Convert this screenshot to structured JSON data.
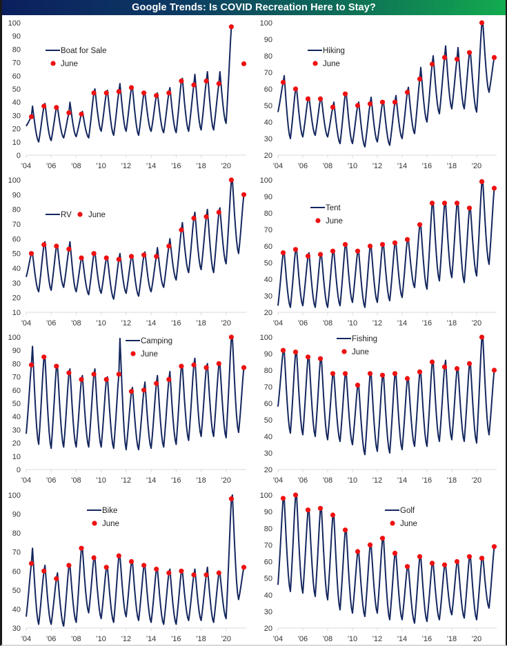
{
  "title": "Google Trends: Is COVID Recreation Here to Stay?",
  "colors": {
    "line": "#13265e",
    "june_marker": "#ee1111",
    "axis": "#d9d9d9",
    "title_start": "#0b1f5e",
    "title_end": "#12ab4f"
  },
  "chart_data": [
    {
      "type": "line",
      "series_name": "Boat for Sale",
      "marker_name": "June",
      "legend_layout": "stacked",
      "xlabels": [
        "'04",
        "'06",
        "'08",
        "'10",
        "'12",
        "'14",
        "'16",
        "'18",
        "'20"
      ],
      "xrange": [
        2004,
        2021.5
      ],
      "ylim": [
        0,
        100
      ],
      "yticks": [
        0,
        10,
        20,
        30,
        40,
        50,
        60,
        70,
        80,
        90,
        100
      ],
      "june_years": [
        2004,
        2005,
        2006,
        2007,
        2008,
        2009,
        2010,
        2011,
        2012,
        2013,
        2014,
        2015,
        2016,
        2017,
        2018,
        2019,
        2020,
        2021
      ],
      "june_values": [
        29,
        37,
        36,
        32,
        31,
        47,
        47,
        48,
        51,
        47,
        45,
        47,
        56,
        53,
        56,
        54,
        97,
        69
      ],
      "annual_peaks": [
        37,
        39,
        36,
        40,
        33,
        50,
        49,
        54,
        51,
        47,
        47,
        51,
        58,
        61,
        63,
        63,
        100
      ],
      "winter_troughs": [
        10,
        11,
        13,
        14,
        13,
        18,
        15,
        18,
        15,
        18,
        17,
        17,
        18,
        19,
        19,
        24
      ],
      "start_value": 22
    },
    {
      "type": "line",
      "series_name": "Hiking",
      "marker_name": "June",
      "legend_layout": "stacked",
      "xlabels": [
        "'04",
        "'06",
        "'08",
        "'10",
        "'12",
        "'14",
        "'16",
        "'18",
        "'20"
      ],
      "xrange": [
        2004,
        2021.5
      ],
      "ylim": [
        20,
        100
      ],
      "yticks": [
        20,
        30,
        40,
        50,
        60,
        70,
        80,
        90,
        100
      ],
      "june_years": [
        2004,
        2005,
        2006,
        2007,
        2008,
        2009,
        2010,
        2011,
        2012,
        2013,
        2014,
        2015,
        2016,
        2017,
        2018,
        2019,
        2020,
        2021
      ],
      "june_values": [
        64,
        60,
        54,
        54,
        49,
        57,
        50,
        51,
        52,
        52,
        58,
        66,
        75,
        79,
        78,
        82,
        100,
        79
      ],
      "annual_peaks": [
        68,
        60,
        55,
        54,
        52,
        57,
        52,
        55,
        52,
        56,
        61,
        73,
        80,
        86,
        85,
        82,
        100
      ],
      "winter_troughs": [
        30,
        31,
        32,
        31,
        27,
        27,
        25,
        28,
        26,
        30,
        33,
        40,
        45,
        48,
        48,
        46,
        58
      ],
      "start_value": 46
    },
    {
      "type": "line",
      "series_name": "RV",
      "marker_name": "June",
      "legend_layout": "inline",
      "xlabels": [
        "'04",
        "'06",
        "'08",
        "'10",
        "'12",
        "'14",
        "'16",
        "'18",
        "'20"
      ],
      "xrange": [
        2004,
        2021.5
      ],
      "ylim": [
        10,
        100
      ],
      "yticks": [
        10,
        20,
        30,
        40,
        50,
        60,
        70,
        80,
        90,
        100
      ],
      "june_years": [
        2004,
        2005,
        2006,
        2007,
        2008,
        2009,
        2010,
        2011,
        2012,
        2013,
        2014,
        2015,
        2016,
        2017,
        2018,
        2019,
        2020,
        2021
      ],
      "june_values": [
        50,
        56,
        55,
        53,
        47,
        50,
        47,
        46,
        48,
        49,
        48,
        55,
        66,
        74,
        75,
        78,
        100,
        90
      ],
      "annual_peaks": [
        50,
        58,
        55,
        58,
        47,
        51,
        47,
        50,
        48,
        51,
        54,
        60,
        71,
        78,
        80,
        81,
        100
      ],
      "winter_troughs": [
        24,
        25,
        27,
        24,
        22,
        23,
        19,
        23,
        21,
        24,
        27,
        32,
        37,
        39,
        37,
        43,
        50
      ],
      "start_value": 34
    },
    {
      "type": "line",
      "series_name": "Tent",
      "marker_name": "June",
      "legend_layout": "stacked",
      "xlabels": [
        "'04",
        "'06",
        "'08",
        "'10",
        "'12",
        "'14",
        "'16",
        "'18",
        "'20"
      ],
      "xrange": [
        2004,
        2021.5
      ],
      "ylim": [
        20,
        100
      ],
      "yticks": [
        20,
        30,
        40,
        50,
        60,
        70,
        80,
        90,
        100
      ],
      "june_years": [
        2004,
        2005,
        2006,
        2007,
        2008,
        2009,
        2010,
        2011,
        2012,
        2013,
        2014,
        2015,
        2016,
        2017,
        2018,
        2019,
        2020,
        2021
      ],
      "june_values": [
        56,
        58,
        54,
        55,
        57,
        61,
        57,
        60,
        61,
        62,
        64,
        73,
        86,
        86,
        86,
        83,
        99,
        95
      ],
      "annual_peaks": [
        56,
        58,
        56,
        55,
        57,
        61,
        57,
        60,
        61,
        62,
        64,
        73,
        86,
        86,
        86,
        83,
        99
      ],
      "winter_troughs": [
        23,
        24,
        23,
        23,
        24,
        26,
        23,
        26,
        27,
        29,
        35,
        34,
        39,
        41,
        38,
        42,
        49
      ],
      "start_value": 24
    },
    {
      "type": "line",
      "series_name": "Camping",
      "marker_name": "June",
      "legend_layout": "stacked",
      "xlabels": [
        "'04",
        "'06",
        "'08",
        "'10",
        "'12",
        "'14",
        "'16",
        "'18",
        "'20"
      ],
      "xrange": [
        2004,
        2021.5
      ],
      "ylim": [
        0,
        100
      ],
      "yticks": [
        0,
        10,
        20,
        30,
        40,
        50,
        60,
        70,
        80,
        90,
        100
      ],
      "june_years": [
        2004,
        2005,
        2006,
        2007,
        2008,
        2009,
        2010,
        2011,
        2012,
        2013,
        2014,
        2015,
        2016,
        2017,
        2018,
        2019,
        2020,
        2021
      ],
      "june_values": [
        79,
        85,
        78,
        73,
        68,
        72,
        68,
        72,
        59,
        60,
        65,
        68,
        78,
        79,
        77,
        80,
        100,
        77
      ],
      "annual_peaks": [
        93,
        85,
        78,
        76,
        71,
        76,
        70,
        99,
        62,
        66,
        71,
        74,
        78,
        84,
        80,
        80,
        100
      ],
      "winter_troughs": [
        19,
        16,
        17,
        17,
        17,
        17,
        16,
        15,
        15,
        16,
        17,
        19,
        22,
        25,
        25,
        24,
        28
      ],
      "start_value": 27
    },
    {
      "type": "line",
      "series_name": "Fishing",
      "marker_name": "June",
      "legend_layout": "stacked",
      "xlabels": [
        "'04",
        "'06",
        "'08",
        "'10",
        "'12",
        "'14",
        "'16",
        "'18",
        "'20"
      ],
      "xrange": [
        2004,
        2021.5
      ],
      "ylim": [
        20,
        100
      ],
      "yticks": [
        20,
        30,
        40,
        50,
        60,
        70,
        80,
        90,
        100
      ],
      "june_years": [
        2004,
        2005,
        2006,
        2007,
        2008,
        2009,
        2010,
        2011,
        2012,
        2013,
        2014,
        2015,
        2016,
        2017,
        2018,
        2019,
        2020,
        2021
      ],
      "june_values": [
        92,
        91,
        88,
        87,
        78,
        78,
        71,
        78,
        77,
        78,
        75,
        79,
        85,
        82,
        81,
        84,
        100,
        80
      ],
      "annual_peaks": [
        92,
        91,
        88,
        87,
        78,
        78,
        71,
        78,
        77,
        78,
        75,
        79,
        85,
        86,
        81,
        84,
        100
      ],
      "winter_troughs": [
        42,
        41,
        40,
        38,
        37,
        35,
        29,
        31,
        30,
        32,
        34,
        34,
        37,
        38,
        37,
        36,
        41
      ],
      "start_value": 58
    },
    {
      "type": "line",
      "series_name": "Bike",
      "marker_name": "June",
      "legend_layout": "stacked",
      "xlabels": [
        "'04",
        "'06",
        "'08",
        "'10",
        "'12",
        "'14",
        "'16",
        "'18",
        "'20"
      ],
      "xrange": [
        2004,
        2021.5
      ],
      "ylim": [
        30,
        100
      ],
      "yticks": [
        30,
        40,
        50,
        60,
        70,
        80,
        90,
        100
      ],
      "june_years": [
        2004,
        2005,
        2006,
        2007,
        2008,
        2009,
        2010,
        2011,
        2012,
        2013,
        2014,
        2015,
        2016,
        2017,
        2018,
        2019,
        2020,
        2021
      ],
      "june_values": [
        64,
        60,
        56,
        63,
        72,
        67,
        62,
        68,
        65,
        63,
        61,
        59,
        60,
        58,
        58,
        59,
        98,
        62
      ],
      "annual_peaks": [
        72,
        63,
        59,
        63,
        72,
        67,
        62,
        68,
        65,
        63,
        61,
        61,
        60,
        61,
        62,
        59,
        100
      ],
      "winter_troughs": [
        32,
        32,
        31,
        33,
        38,
        35,
        33,
        36,
        34,
        33,
        32,
        32,
        34,
        34,
        33,
        35,
        45
      ],
      "start_value": 36
    },
    {
      "type": "line",
      "series_name": "Golf",
      "marker_name": "June",
      "legend_layout": "stacked",
      "xlabels": [
        "'04",
        "'06",
        "'08",
        "'10",
        "'12",
        "'14",
        "'16",
        "'18",
        "'20"
      ],
      "xrange": [
        2004,
        2021.5
      ],
      "ylim": [
        20,
        100
      ],
      "yticks": [
        20,
        30,
        40,
        50,
        60,
        70,
        80,
        90,
        100
      ],
      "june_years": [
        2004,
        2005,
        2006,
        2007,
        2008,
        2009,
        2010,
        2011,
        2012,
        2013,
        2014,
        2015,
        2016,
        2017,
        2018,
        2019,
        2020,
        2021
      ],
      "june_values": [
        98,
        100,
        91,
        92,
        88,
        79,
        66,
        70,
        74,
        65,
        57,
        63,
        59,
        58,
        60,
        63,
        62,
        69
      ],
      "annual_peaks": [
        98,
        100,
        91,
        92,
        88,
        79,
        66,
        70,
        74,
        65,
        57,
        63,
        59,
        58,
        60,
        63,
        63
      ],
      "winter_troughs": [
        42,
        41,
        39,
        37,
        31,
        29,
        27,
        29,
        25,
        25,
        23,
        24,
        25,
        28,
        26,
        25,
        32
      ],
      "start_value": 46
    }
  ]
}
